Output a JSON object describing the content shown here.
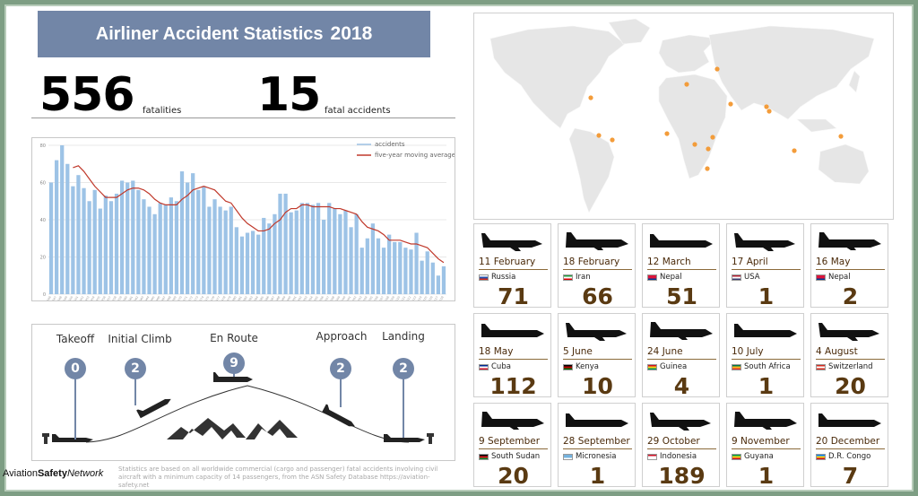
{
  "header": {
    "title": "Airliner Accident Statistics",
    "year": "2018"
  },
  "stats": {
    "fatalities_value": "556",
    "fatalities_label": "fatalities",
    "accidents_value": "15",
    "accidents_label": "fatal accidents"
  },
  "colors": {
    "accent": "#7286a7",
    "bars": "#9dc3e6",
    "moving_average": "#c0392b",
    "map_marker": "#f39c3a",
    "fatality_number": "#5a3a12"
  },
  "chart_data": {
    "type": "bar",
    "title": "",
    "xlabel": "",
    "ylabel": "",
    "ylim": [
      0,
      80
    ],
    "yticks": [
      0,
      20,
      40,
      60,
      80
    ],
    "grid": true,
    "legend_placement": "top-right",
    "categories": [
      1946,
      1947,
      1948,
      1949,
      1950,
      1951,
      1952,
      1953,
      1954,
      1955,
      1956,
      1957,
      1958,
      1959,
      1960,
      1961,
      1962,
      1963,
      1964,
      1965,
      1966,
      1967,
      1968,
      1969,
      1970,
      1971,
      1972,
      1973,
      1974,
      1975,
      1976,
      1977,
      1978,
      1979,
      1980,
      1981,
      1982,
      1983,
      1984,
      1985,
      1986,
      1987,
      1988,
      1989,
      1990,
      1991,
      1992,
      1993,
      1994,
      1995,
      1996,
      1997,
      1998,
      1999,
      2000,
      2001,
      2002,
      2003,
      2004,
      2005,
      2006,
      2007,
      2008,
      2009,
      2010,
      2011,
      2012,
      2013,
      2014,
      2015,
      2016,
      2017,
      2018
    ],
    "series": [
      {
        "name": "accidents",
        "type": "bar",
        "values": [
          60,
          72,
          80,
          70,
          58,
          64,
          57,
          50,
          56,
          46,
          53,
          50,
          54,
          61,
          60,
          61,
          56,
          51,
          47,
          43,
          49,
          48,
          52,
          50,
          66,
          60,
          65,
          56,
          58,
          47,
          51,
          47,
          45,
          47,
          36,
          31,
          33,
          34,
          32,
          41,
          38,
          43,
          54,
          54,
          44,
          45,
          49,
          49,
          48,
          49,
          40,
          49,
          46,
          43,
          45,
          36,
          43,
          25,
          30,
          38,
          30,
          25,
          32,
          28,
          28,
          25,
          24,
          33,
          18,
          23,
          17,
          10,
          15
        ]
      },
      {
        "name": "five-year moving average",
        "type": "line",
        "values": [
          null,
          null,
          null,
          null,
          68,
          69,
          66,
          62,
          58,
          55,
          52,
          52,
          52,
          54,
          56,
          57,
          57,
          56,
          54,
          51,
          49,
          48,
          48,
          48,
          51,
          53,
          56,
          57,
          58,
          57,
          56,
          53,
          50,
          49,
          45,
          41,
          38,
          36,
          34,
          34,
          35,
          38,
          40,
          44,
          46,
          46,
          48,
          48,
          47,
          47,
          47,
          47,
          46,
          46,
          45,
          44,
          43,
          39,
          36,
          35,
          34,
          32,
          29,
          29,
          29,
          28,
          27,
          27,
          26,
          25,
          22,
          19,
          17
        ]
      }
    ]
  },
  "phases": [
    {
      "label": "Takeoff",
      "count": "0"
    },
    {
      "label": "Initial Climb",
      "count": "2"
    },
    {
      "label": "En Route",
      "count": "9"
    },
    {
      "label": "Approach",
      "count": "2"
    },
    {
      "label": "Landing",
      "count": "2"
    }
  ],
  "accidents": [
    {
      "date": "11 February",
      "country": "Russia",
      "fatalities": "71",
      "flag": [
        "#ffffff",
        "#1f4fae",
        "#d52b1e"
      ]
    },
    {
      "date": "18 February",
      "country": "Iran",
      "fatalities": "66",
      "flag": [
        "#239f40",
        "#ffffff",
        "#da0000"
      ]
    },
    {
      "date": "12 March",
      "country": "Nepal",
      "fatalities": "51",
      "flag": [
        "#dc143c",
        "#dc143c",
        "#003893"
      ]
    },
    {
      "date": "17 April",
      "country": "USA",
      "fatalities": "1",
      "flag": [
        "#b22234",
        "#ffffff",
        "#3c3b6e"
      ]
    },
    {
      "date": "16 May",
      "country": "Nepal",
      "fatalities": "2",
      "flag": [
        "#dc143c",
        "#dc143c",
        "#003893"
      ]
    },
    {
      "date": "18 May",
      "country": "Cuba",
      "fatalities": "112",
      "flag": [
        "#002a8f",
        "#ffffff",
        "#cf142b"
      ]
    },
    {
      "date": "5 June",
      "country": "Kenya",
      "fatalities": "10",
      "flag": [
        "#000000",
        "#bb0000",
        "#006600"
      ]
    },
    {
      "date": "24 June",
      "country": "Guinea",
      "fatalities": "4",
      "flag": [
        "#ce1126",
        "#fcd116",
        "#009460"
      ]
    },
    {
      "date": "10 July",
      "country": "South Africa",
      "fatalities": "1",
      "flag": [
        "#007749",
        "#ffb81c",
        "#de3831"
      ]
    },
    {
      "date": "4 August",
      "country": "Switzerland",
      "fatalities": "20",
      "flag": [
        "#d52b1e",
        "#ffffff",
        "#d52b1e"
      ]
    },
    {
      "date": "9 September",
      "country": "South Sudan",
      "fatalities": "20",
      "flag": [
        "#000000",
        "#da121a",
        "#078930"
      ]
    },
    {
      "date": "28 September",
      "country": "Micronesia",
      "fatalities": "1",
      "flag": [
        "#75b2dd",
        "#75b2dd",
        "#ffffff"
      ]
    },
    {
      "date": "29 October",
      "country": "Indonesia",
      "fatalities": "189",
      "flag": [
        "#ce1126",
        "#ffffff",
        "#ffffff"
      ]
    },
    {
      "date": "9 November",
      "country": "Guyana",
      "fatalities": "1",
      "flag": [
        "#009e49",
        "#fcd116",
        "#ce1126"
      ]
    },
    {
      "date": "20 December",
      "country": "D.R. Congo",
      "fatalities": "7",
      "flag": [
        "#007fff",
        "#f7d618",
        "#ce1021"
      ]
    }
  ],
  "footer": {
    "brand_a": "Aviation",
    "brand_b": "Safety",
    "brand_c": "Network",
    "note": "Statistics are based on all worldwide commercial (cargo and passenger) fatal accidents involving civil aircraft with a minimum capacity of 14 passengers, from the ASN Safety Database https://aviation-safety.net"
  }
}
